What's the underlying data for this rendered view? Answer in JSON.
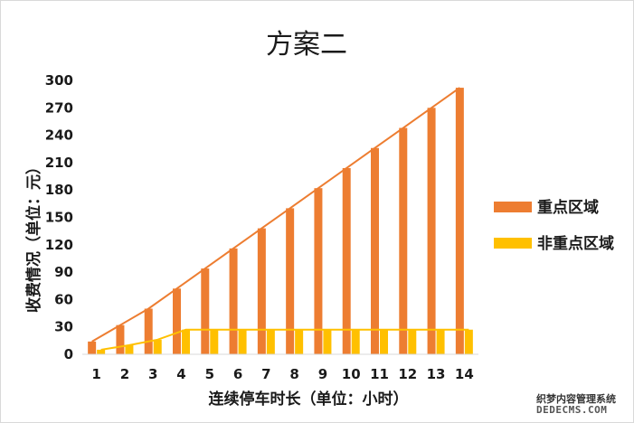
{
  "chart_data": {
    "type": "bar",
    "title": "方案二",
    "xlabel": "连续停车时长（单位：小时）",
    "ylabel": "收费情况（单位：元）",
    "categories": [
      "1",
      "2",
      "3",
      "4",
      "5",
      "6",
      "7",
      "8",
      "9",
      "10",
      "11",
      "12",
      "13",
      "14"
    ],
    "ylim": [
      0,
      300
    ],
    "yticks": [
      0,
      30,
      60,
      90,
      120,
      150,
      180,
      210,
      240,
      270,
      300
    ],
    "grid": false,
    "legend_position": "right",
    "series": [
      {
        "name": "重点区域",
        "color": "#ed7d31",
        "values": [
          14,
          32,
          50,
          72,
          94,
          116,
          138,
          160,
          182,
          204,
          226,
          248,
          270,
          292
        ],
        "trendline": true
      },
      {
        "name": "非重点区域",
        "color": "#ffc000",
        "values": [
          5,
          10,
          16,
          27,
          27,
          27,
          27,
          27,
          27,
          27,
          27,
          27,
          27,
          27
        ],
        "trendline": true
      }
    ]
  },
  "watermark": {
    "line1": "织梦内容管理系统",
    "line2": "DEDECMS.COM"
  }
}
